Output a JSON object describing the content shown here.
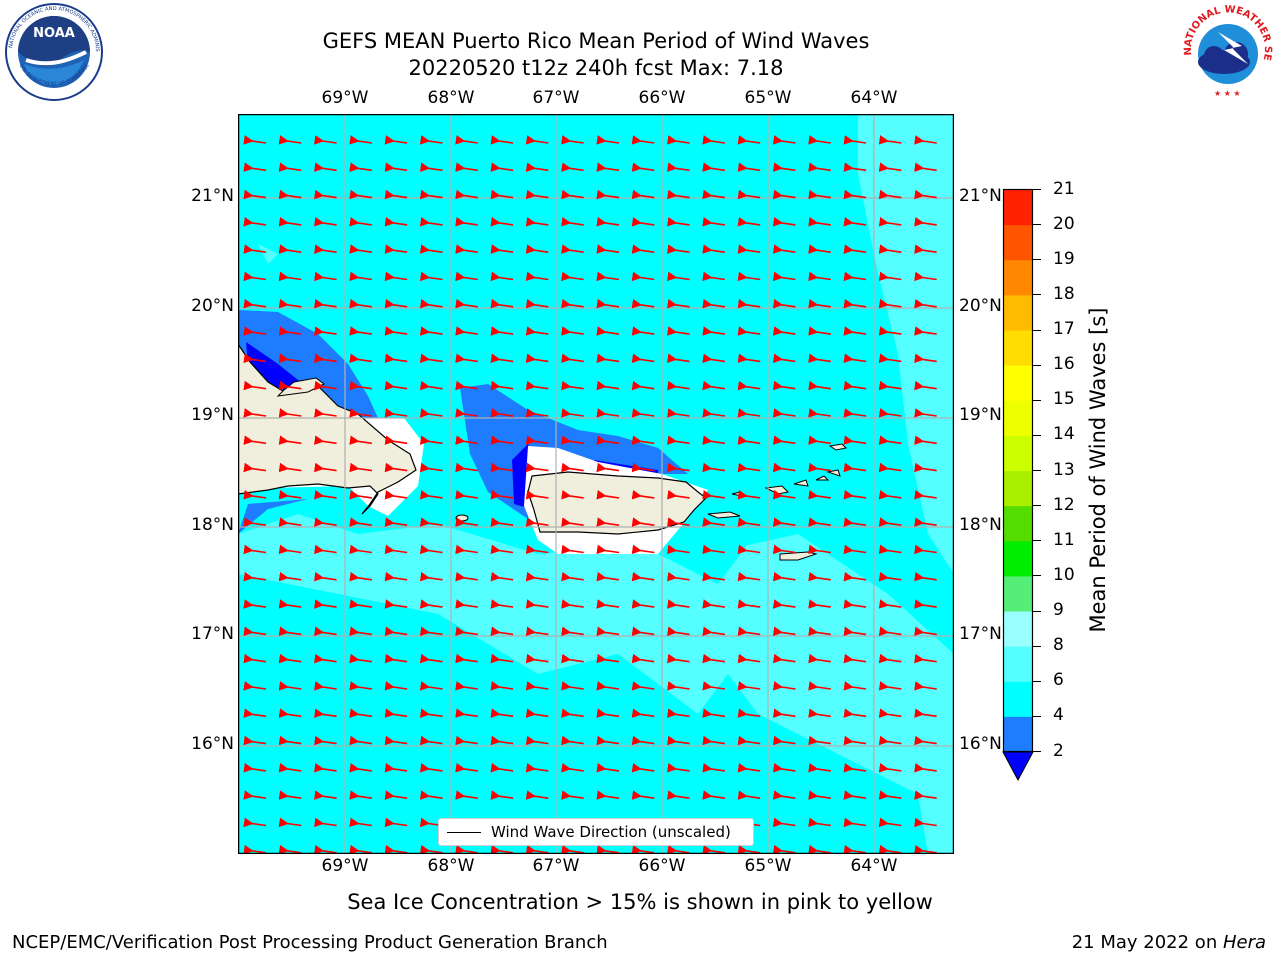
{
  "title": {
    "line1": "GEFS MEAN Puerto Rico Mean Period of Wind Waves",
    "line2": "20220520 t12z 240h fcst   Max: 7.18"
  },
  "map": {
    "lon_labels": [
      "69°W",
      "68°W",
      "67°W",
      "66°W",
      "65°W",
      "64°W"
    ],
    "lat_labels": [
      "21°N",
      "20°N",
      "19°N",
      "18°N",
      "17°N",
      "16°N"
    ],
    "legend_label": "Wind Wave Direction (unscaled)",
    "colors": {
      "ocean": "#00ffff",
      "ocean_light": "#55ffff",
      "shelf": "#1e7dff",
      "deep": "#0000ff",
      "land": "#f0eedc",
      "arrow": "#ff0000"
    }
  },
  "colorbar": {
    "label": "Mean Period of Wind Waves [s]",
    "ticks": [
      "2",
      "4",
      "6",
      "8",
      "9",
      "10",
      "11",
      "12",
      "13",
      "14",
      "15",
      "16",
      "17",
      "18",
      "19",
      "20",
      "21"
    ],
    "colors": [
      "#1e7dff",
      "#00ffff",
      "#55ffff",
      "#99ffff",
      "#55ee77",
      "#00ee00",
      "#55dd00",
      "#aaee00",
      "#ccff00",
      "#eeff00",
      "#ffff00",
      "#ffdd00",
      "#ffbb00",
      "#ff8800",
      "#ff5500",
      "#ff2200"
    ],
    "under_color": "#0000ff"
  },
  "caption": "Sea Ice Concentration > 15% is shown in pink to yellow",
  "footer": {
    "left": "NCEP/EMC/Verification Post Processing Product Generation Branch",
    "right_date": "21 May 2022 on ",
    "right_host": "Hera"
  },
  "logos": {
    "noaa_text": "NOAA",
    "nws_text": "NATIONAL WEATHER SERVICE"
  }
}
